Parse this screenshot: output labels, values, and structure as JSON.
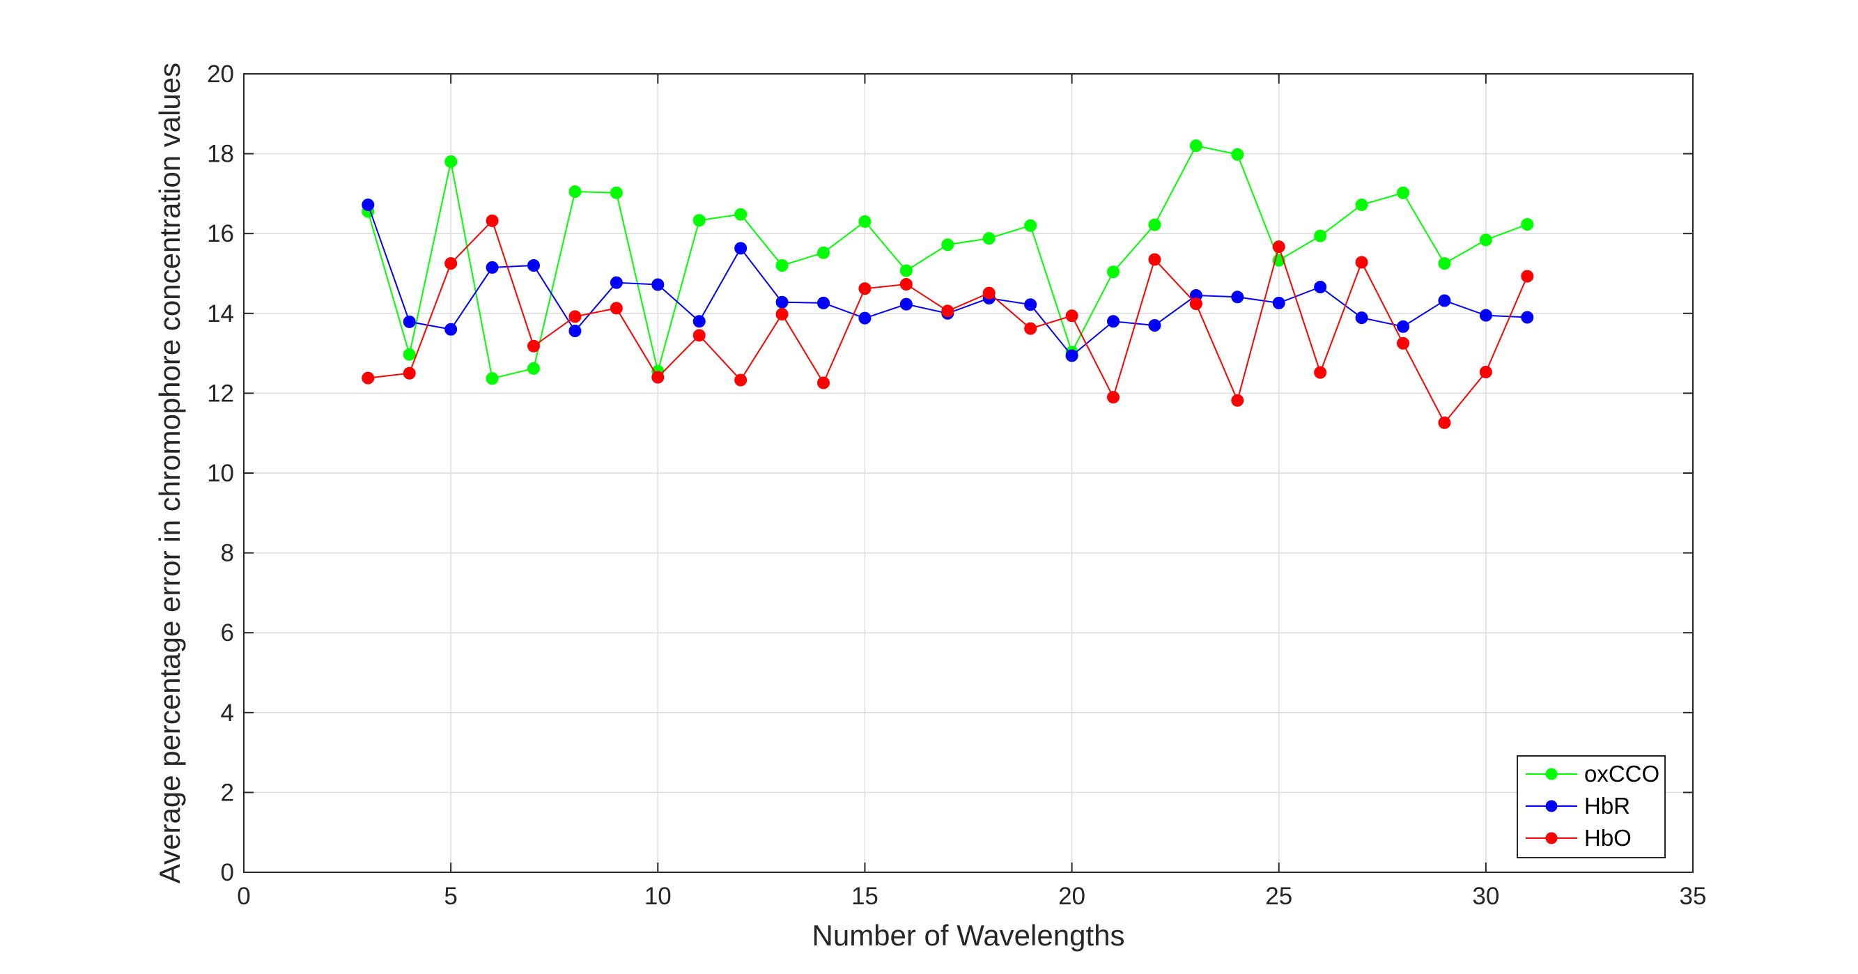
{
  "chart_data": {
    "type": "line",
    "title": "",
    "xlabel": "Number of Wavelengths",
    "ylabel": "Average percentage error in chromophore concentration values",
    "xlim": [
      0,
      35
    ],
    "ylim": [
      0,
      20
    ],
    "xticks": [
      0,
      5,
      10,
      15,
      20,
      25,
      30,
      35
    ],
    "yticks": [
      0,
      2,
      4,
      6,
      8,
      10,
      12,
      14,
      16,
      18,
      20
    ],
    "grid": true,
    "legend_position": "bottom-right",
    "x": [
      3,
      4,
      5,
      6,
      7,
      8,
      9,
      10,
      11,
      12,
      13,
      14,
      15,
      16,
      17,
      18,
      19,
      20,
      21,
      22,
      23,
      24,
      25,
      26,
      27,
      28,
      29,
      30,
      31
    ],
    "series": [
      {
        "name": "oxCCO",
        "color": "#00ff00",
        "marker": "circle",
        "values": [
          16.55,
          12.97,
          17.8,
          12.37,
          12.62,
          17.05,
          17.02,
          12.55,
          16.33,
          16.48,
          15.2,
          15.52,
          16.3,
          15.07,
          15.72,
          15.88,
          16.2,
          13.03,
          15.04,
          16.22,
          18.2,
          17.98,
          15.33,
          15.94,
          16.72,
          17.02,
          15.25,
          15.84,
          16.23
        ]
      },
      {
        "name": "HbR",
        "color": "#0000ff",
        "marker": "circle",
        "values": [
          16.72,
          13.79,
          13.6,
          15.15,
          15.2,
          13.56,
          14.77,
          14.72,
          13.8,
          15.63,
          14.28,
          14.26,
          13.88,
          14.23,
          14.0,
          14.38,
          14.22,
          12.94,
          13.8,
          13.7,
          14.45,
          14.41,
          14.26,
          14.66,
          13.89,
          13.67,
          14.32,
          13.95,
          13.9
        ]
      },
      {
        "name": "HbO",
        "color": "#ff0000",
        "marker": "circle",
        "values": [
          12.38,
          12.5,
          15.25,
          16.32,
          13.18,
          13.92,
          14.13,
          12.4,
          13.45,
          12.33,
          13.98,
          12.26,
          14.62,
          14.73,
          14.06,
          14.51,
          13.62,
          13.94,
          11.9,
          15.35,
          14.24,
          11.82,
          15.67,
          12.52,
          15.28,
          13.25,
          11.26,
          12.53,
          14.93
        ]
      }
    ]
  }
}
